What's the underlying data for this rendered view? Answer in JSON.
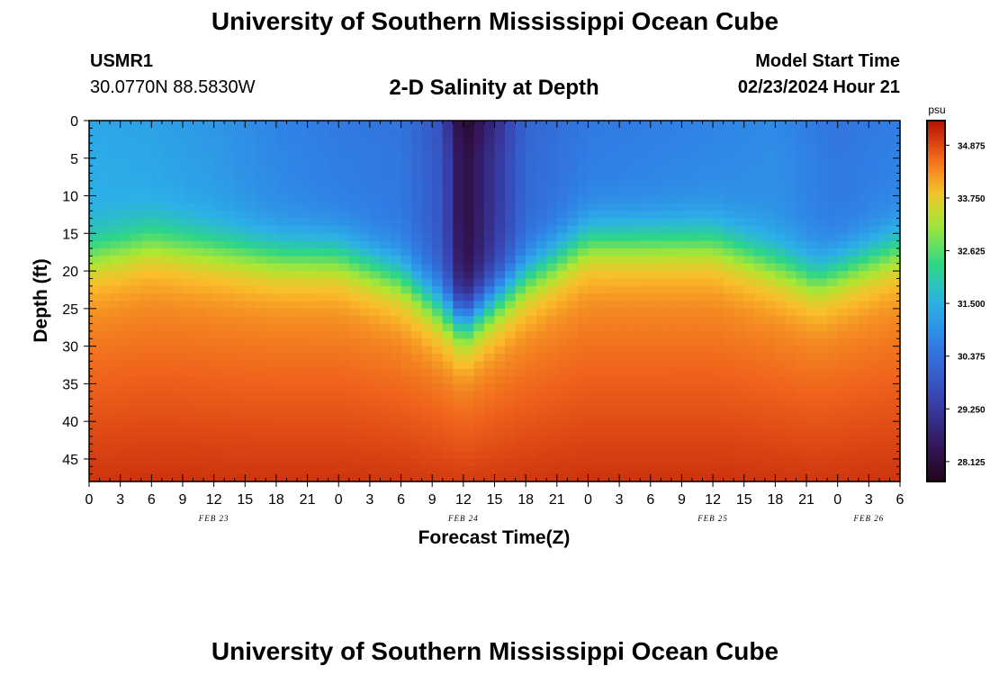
{
  "page_title": "University of Southern Mississippi Ocean Cube",
  "footer_title": "University of Southern Mississippi Ocean Cube",
  "station": {
    "id": "USMR1",
    "coords": "30.0770N  88.5830W"
  },
  "chart_title": "2-D Salinity at Depth",
  "model": {
    "label": "Model Start Time",
    "value": "02/23/2024 Hour 21"
  },
  "chart_data": {
    "type": "heatmap",
    "title": "2-D Salinity at Depth",
    "xlabel": "Forecast Time(Z)",
    "ylabel": "Depth (ft)",
    "xlim": [
      0,
      78
    ],
    "ylim": [
      0,
      48
    ],
    "x_tick_labels": [
      "0",
      "3",
      "6",
      "9",
      "12",
      "15",
      "18",
      "21",
      "0",
      "3",
      "6",
      "9",
      "12",
      "15",
      "18",
      "21",
      "0",
      "3",
      "6",
      "9",
      "12",
      "15",
      "18",
      "21",
      "0",
      "3",
      "6"
    ],
    "date_labels": [
      {
        "label": "FEB 23",
        "hour": 12
      },
      {
        "label": "FEB 24",
        "hour": 36
      },
      {
        "label": "FEB 25",
        "hour": 60
      },
      {
        "label": "FEB 26",
        "hour": 75
      }
    ],
    "y_ticks": [
      0,
      5,
      10,
      15,
      20,
      25,
      30,
      35,
      40,
      45
    ],
    "colorbar": {
      "unit": "psu",
      "range": [
        27.7,
        35.4
      ],
      "tick_labels": [
        "34.875",
        "33.750",
        "32.625",
        "31.500",
        "30.375",
        "29.250",
        "28.125"
      ]
    },
    "halocline_depth_ft": {
      "hours": [
        0,
        6,
        12,
        18,
        24,
        30,
        34,
        36,
        38,
        42,
        48,
        54,
        60,
        66,
        70,
        72,
        78
      ],
      "depth": [
        18,
        16,
        17,
        18,
        18,
        21,
        25,
        27,
        25,
        21,
        16,
        16,
        16,
        19,
        21,
        20,
        17
      ]
    },
    "surface_salinity_psu": {
      "hours": [
        0,
        6,
        12,
        18,
        24,
        30,
        34,
        36,
        38,
        42,
        48,
        54,
        60,
        66,
        72,
        78
      ],
      "values": [
        31.4,
        31.3,
        31.1,
        30.8,
        30.6,
        30.5,
        29.8,
        28.1,
        28.8,
        30.2,
        30.6,
        30.7,
        30.8,
        30.9,
        30.5,
        30.7
      ]
    },
    "deep_salinity_psu": 35.1
  }
}
